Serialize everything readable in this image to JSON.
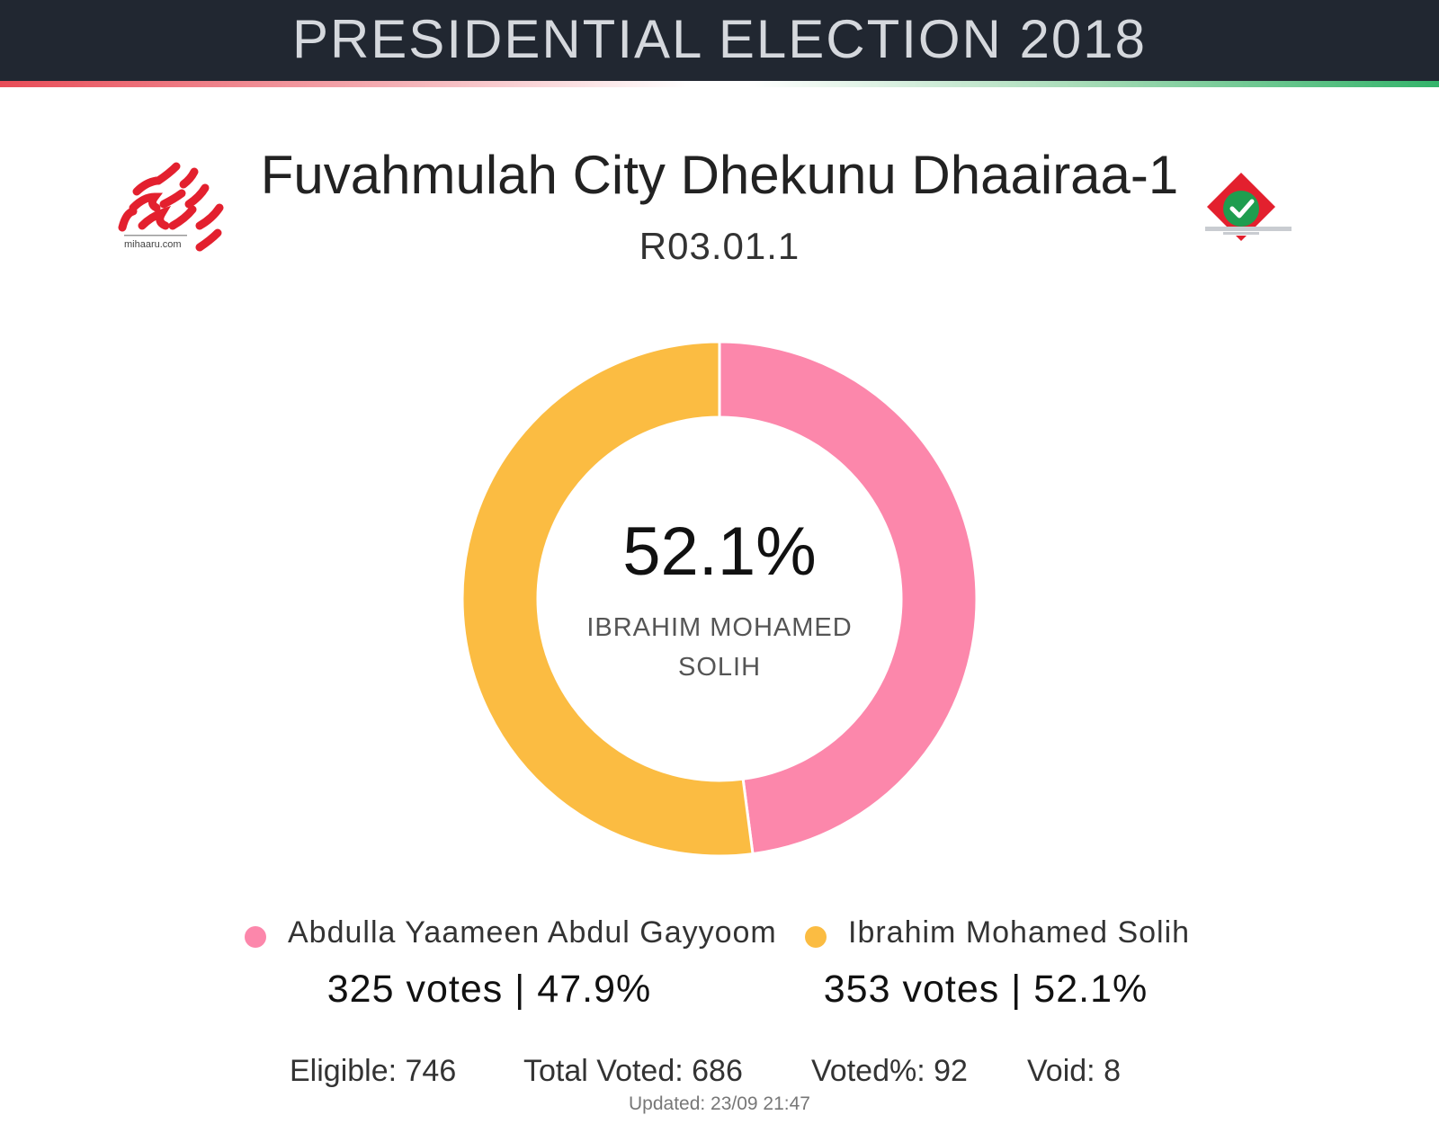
{
  "header": {
    "banner_title": "PRESIDENTIAL ELECTION 2018"
  },
  "logos": {
    "left_logo_text": "mihaaru.com",
    "left_logo_icon": "mihaaru-logo",
    "right_logo_icon": "ballot-box-check-icon",
    "colors": {
      "brand_red": "#e3202e",
      "check_green": "#1f9d4f"
    }
  },
  "page": {
    "title": "Fuvahmulah City Dhekunu Dhaairaa-1",
    "subtitle": "R03.01.1"
  },
  "chart_data": {
    "type": "pie",
    "style": "donut",
    "series": [
      {
        "name": "Abdulla Yaameen Abdul Gayyoom",
        "votes": 325,
        "percent": 47.9,
        "color": "#fc87ab"
      },
      {
        "name": "Ibrahim Mohamed Solih",
        "votes": 353,
        "percent": 52.1,
        "color": "#fbbc42"
      }
    ],
    "center_value": "52.1%",
    "center_label": "IBRAHIM MOHAMED SOLIH",
    "legend_placement": "bottom"
  },
  "legend": [
    {
      "name": "Abdulla Yaameen Abdul Gayyoom",
      "summary": "325 votes | 47.9%"
    },
    {
      "name": "Ibrahim Mohamed Solih",
      "summary": "353 votes | 52.1%"
    }
  ],
  "stats": {
    "eligible": "Eligible: 746",
    "total_voted": "Total Voted: 686",
    "voted_pct": "Voted%: 92",
    "void": "Void: 8"
  },
  "footer": {
    "updated": "Updated: 23/09 21:47"
  }
}
